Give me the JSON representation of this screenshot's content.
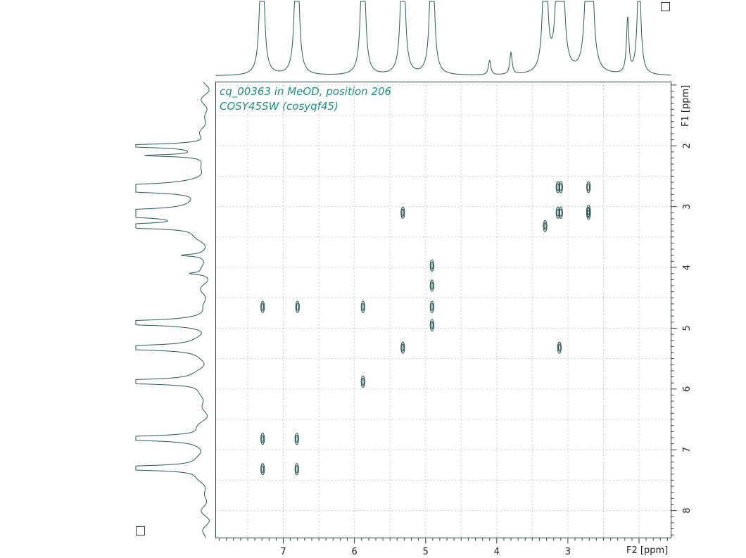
{
  "chart_data": {
    "type": "contour",
    "title_lines": [
      "cq_00363 in MeOD, position 206",
      "COSY45SW (cosyqf45)"
    ],
    "x_axis": {
      "label": "F2 [ppm]",
      "range": [
        7.95,
        1.55
      ],
      "reversed": true,
      "ticks": [
        7,
        6,
        5,
        4,
        3
      ]
    },
    "y_axis": {
      "label": "F1 [ppm]",
      "range": [
        0.95,
        8.45
      ],
      "reversed": true,
      "position": "right",
      "ticks": [
        2,
        3,
        4,
        5,
        6,
        7,
        8
      ]
    },
    "grid": true,
    "colors": {
      "contour": "#1e4e4b",
      "trace": "#2a5b57",
      "title": "#1f8f7f"
    },
    "cross_peaks": [
      {
        "x": 3.14,
        "y": 2.68
      },
      {
        "x": 3.1,
        "y": 2.68
      },
      {
        "x": 2.71,
        "y": 2.68
      },
      {
        "x": 3.14,
        "y": 3.1
      },
      {
        "x": 3.1,
        "y": 3.1
      },
      {
        "x": 2.71,
        "y": 3.07
      },
      {
        "x": 2.71,
        "y": 3.12
      },
      {
        "x": 5.32,
        "y": 3.1
      },
      {
        "x": 3.32,
        "y": 3.32
      },
      {
        "x": 4.91,
        "y": 3.97
      },
      {
        "x": 4.91,
        "y": 4.3
      },
      {
        "x": 4.91,
        "y": 4.65
      },
      {
        "x": 4.91,
        "y": 4.95
      },
      {
        "x": 7.29,
        "y": 4.65
      },
      {
        "x": 6.8,
        "y": 4.65
      },
      {
        "x": 5.88,
        "y": 4.65
      },
      {
        "x": 5.32,
        "y": 5.32
      },
      {
        "x": 3.12,
        "y": 5.32
      },
      {
        "x": 5.88,
        "y": 5.88
      },
      {
        "x": 7.29,
        "y": 6.82
      },
      {
        "x": 6.81,
        "y": 6.82
      },
      {
        "x": 7.29,
        "y": 7.32
      },
      {
        "x": 6.81,
        "y": 7.32
      }
    ],
    "projection_peaks": [
      {
        "shift": 7.3,
        "height": 1.0
      },
      {
        "shift": 6.81,
        "height": 1.0
      },
      {
        "shift": 5.88,
        "height": 1.0
      },
      {
        "shift": 5.32,
        "height": 1.0
      },
      {
        "shift": 4.91,
        "height": 1.0
      },
      {
        "shift": 4.1,
        "height": 0.08
      },
      {
        "shift": 3.8,
        "height": 0.12
      },
      {
        "shift": 3.32,
        "height": 1.0
      },
      {
        "shift": 3.13,
        "height": 1.0
      },
      {
        "shift": 3.09,
        "height": 1.0
      },
      {
        "shift": 2.72,
        "height": 1.0
      },
      {
        "shift": 2.68,
        "height": 1.0
      },
      {
        "shift": 2.16,
        "height": 0.3
      },
      {
        "shift": 2.0,
        "height": 0.6
      }
    ]
  },
  "controls": {
    "square_top_right": "",
    "square_bottom_left": ""
  }
}
